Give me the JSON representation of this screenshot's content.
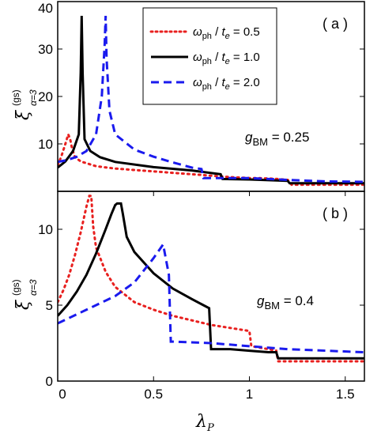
{
  "chart_data": [
    {
      "type": "line",
      "panel_label": "( a )",
      "ylabel": {
        "symbol": "ξ",
        "superscript": "(gs)",
        "subscript": "α=3"
      },
      "xlim": [
        0,
        1.6
      ],
      "ylim": [
        0,
        40
      ],
      "yticks": [
        10,
        20,
        30,
        40
      ],
      "annotation": {
        "symbol": "g",
        "subscript": "BM",
        "text": " = 0.25"
      },
      "legend": {
        "position": "top-right",
        "entries": [
          {
            "symbol": "ω",
            "sub1": "ph",
            "mid": " / ",
            "t": "t",
            "sub2": "e",
            "value": " = 0.5"
          },
          {
            "symbol": "ω",
            "sub1": "ph",
            "mid": " / ",
            "t": "t",
            "sub2": "e",
            "value": " = 1.0"
          },
          {
            "symbol": "ω",
            "sub1": "ph",
            "mid": " / ",
            "t": "t",
            "sub2": "e",
            "value": " = 2.0"
          }
        ]
      },
      "series": [
        {
          "color": "#e8201f",
          "style": "dotted",
          "x": [
            0,
            0.02,
            0.04,
            0.055,
            0.065,
            0.075,
            0.09,
            0.12,
            0.2,
            0.3,
            0.5,
            0.7,
            0.9,
            1.0,
            1.05,
            1.1,
            1.15,
            1.2,
            1.22,
            1.3,
            1.4,
            1.5,
            1.6
          ],
          "y": [
            5.5,
            7.5,
            10,
            12,
            11,
            9,
            7.2,
            6.3,
            5.3,
            4.8,
            4.2,
            3.6,
            3.0,
            2.8,
            2.8,
            2.7,
            2.6,
            2.4,
            1.4,
            1.4,
            1.4,
            1.4,
            1.4
          ]
        },
        {
          "color": "#000000",
          "style": "solid",
          "x": [
            0,
            0.04,
            0.08,
            0.11,
            0.12,
            0.125,
            0.13,
            0.14,
            0.17,
            0.22,
            0.3,
            0.5,
            0.7,
            0.85,
            0.86,
            1.0,
            1.2,
            1.21,
            1.4,
            1.6
          ],
          "y": [
            5.0,
            6.3,
            8.5,
            12,
            25,
            37,
            25,
            11,
            8.5,
            7.2,
            6.2,
            5.1,
            4.4,
            3.6,
            2.6,
            2.5,
            2.2,
            1.7,
            1.7,
            1.7
          ]
        },
        {
          "color": "#1a1aee",
          "style": "dashed",
          "x": [
            0,
            0.05,
            0.1,
            0.15,
            0.2,
            0.23,
            0.245,
            0.25,
            0.255,
            0.27,
            0.3,
            0.4,
            0.5,
            0.6,
            0.7,
            0.75,
            0.76,
            0.85,
            1.0,
            1.2,
            1.4,
            1.6
          ],
          "y": [
            6.2,
            6.6,
            7.3,
            8.5,
            12,
            20,
            31,
            37,
            28,
            17,
            12,
            8.8,
            7.3,
            6.1,
            5.0,
            4.7,
            2.8,
            2.8,
            2.8,
            2.4,
            2.1,
            2.0
          ]
        }
      ]
    },
    {
      "type": "line",
      "panel_label": "( b )",
      "ylabel": {
        "symbol": "ξ",
        "superscript": "(gs)",
        "subscript": "α=3"
      },
      "xlabel": {
        "symbol": "λ",
        "subscript": "P"
      },
      "xlim": [
        0,
        1.6
      ],
      "ylim": [
        0,
        12.5
      ],
      "xticks": [
        "0",
        "0.5",
        "1",
        "1.5"
      ],
      "xtick_values": [
        0,
        0.5,
        1,
        1.5
      ],
      "yticks": [
        0,
        5,
        10
      ],
      "annotation": {
        "symbol": "g",
        "subscript": "BM",
        "text": " = 0.4"
      },
      "series": [
        {
          "color": "#e8201f",
          "style": "dotted",
          "x": [
            0,
            0.03,
            0.06,
            0.09,
            0.12,
            0.15,
            0.165,
            0.175,
            0.185,
            0.2,
            0.25,
            0.3,
            0.4,
            0.5,
            0.6,
            0.7,
            0.8,
            0.9,
            1.0,
            1.01,
            1.1,
            1.14,
            1.15,
            1.3,
            1.5,
            1.6
          ],
          "y": [
            5.2,
            6.0,
            7.0,
            8.3,
            9.8,
            11.5,
            12.2,
            12.2,
            10.2,
            8.8,
            7.2,
            6.2,
            5.2,
            4.7,
            4.3,
            4.0,
            3.7,
            3.5,
            3.3,
            2.3,
            2.1,
            2.0,
            1.3,
            1.3,
            1.3,
            1.3
          ]
        },
        {
          "color": "#000000",
          "style": "solid",
          "x": [
            0,
            0.05,
            0.1,
            0.15,
            0.2,
            0.25,
            0.28,
            0.3,
            0.31,
            0.33,
            0.34,
            0.36,
            0.4,
            0.5,
            0.6,
            0.7,
            0.79,
            0.8,
            0.9,
            1.0,
            1.1,
            1.14,
            1.15,
            1.3,
            1.5,
            1.6
          ],
          "y": [
            4.3,
            5.0,
            5.9,
            7.0,
            8.4,
            10.0,
            11.0,
            11.6,
            11.7,
            11.7,
            11.0,
            9.5,
            8.5,
            7.1,
            6.1,
            5.4,
            4.8,
            2.1,
            2.1,
            2.0,
            1.9,
            1.9,
            1.5,
            1.5,
            1.5,
            1.5
          ]
        },
        {
          "color": "#1a1aee",
          "style": "dashed",
          "x": [
            0,
            0.05,
            0.1,
            0.2,
            0.3,
            0.4,
            0.45,
            0.5,
            0.55,
            0.58,
            0.59,
            0.6,
            0.8,
            1.0,
            1.2,
            1.4,
            1.6
          ],
          "y": [
            3.8,
            4.1,
            4.4,
            5.0,
            5.6,
            6.5,
            7.3,
            8.1,
            9.0,
            7.0,
            2.6,
            2.6,
            2.5,
            2.3,
            2.1,
            2.0,
            1.9
          ]
        }
      ]
    }
  ]
}
